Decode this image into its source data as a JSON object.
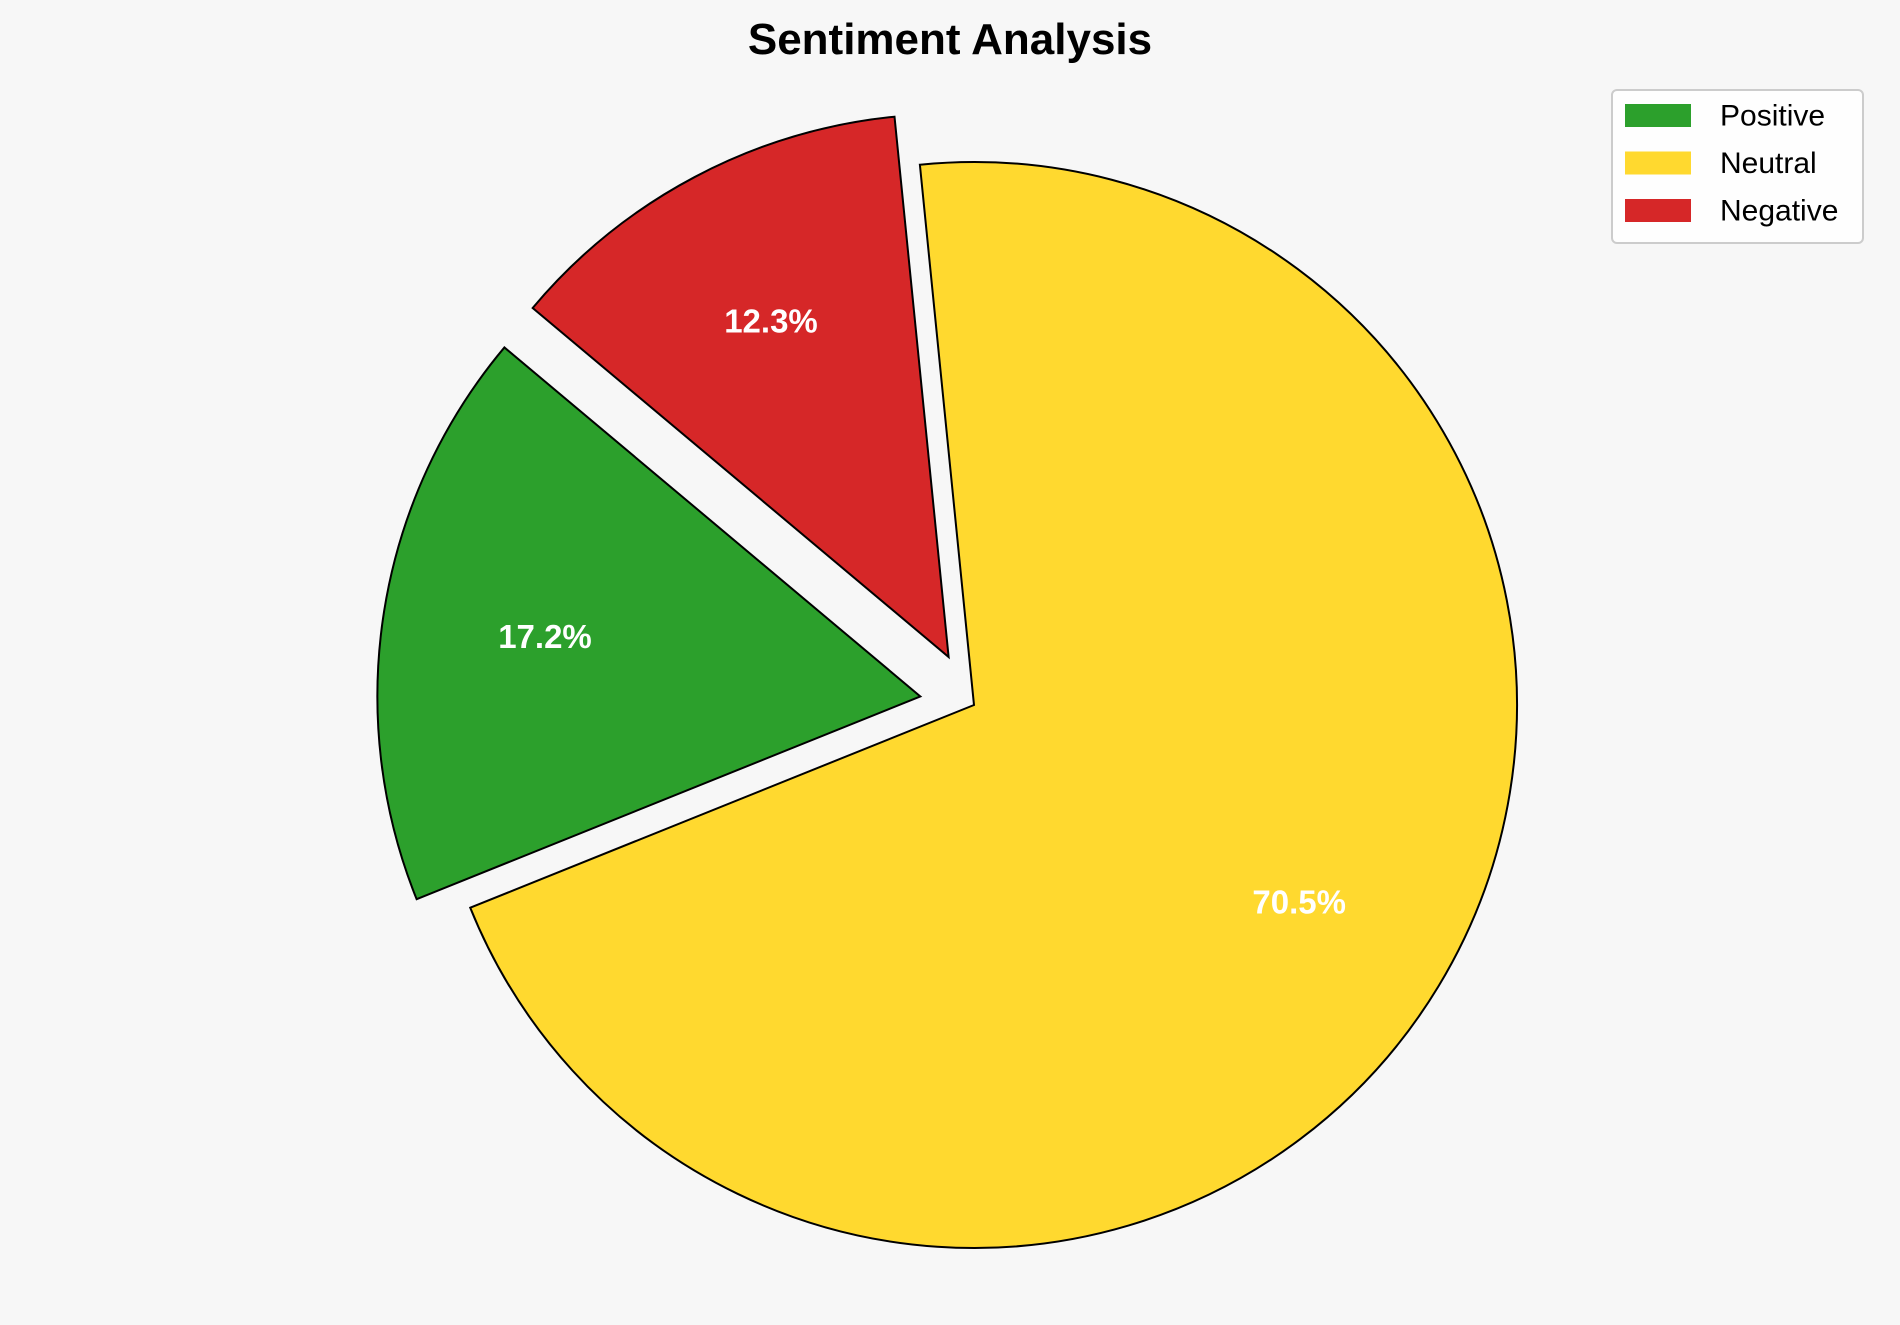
{
  "chart_data": {
    "type": "pie",
    "title": "Sentiment Analysis",
    "categories": [
      "Positive",
      "Neutral",
      "Negative"
    ],
    "values": [
      17.2,
      70.5,
      12.3
    ],
    "labels": [
      "17.2%",
      "70.5%",
      "12.3%"
    ],
    "colors": [
      "#2ca02c",
      "#ffd92f",
      "#d62728"
    ],
    "explode": [
      0.1,
      0,
      0.1
    ],
    "start_angle": 140,
    "edge_color": "#000000",
    "legend_position": "top-right",
    "background": "#f7f7f7"
  }
}
